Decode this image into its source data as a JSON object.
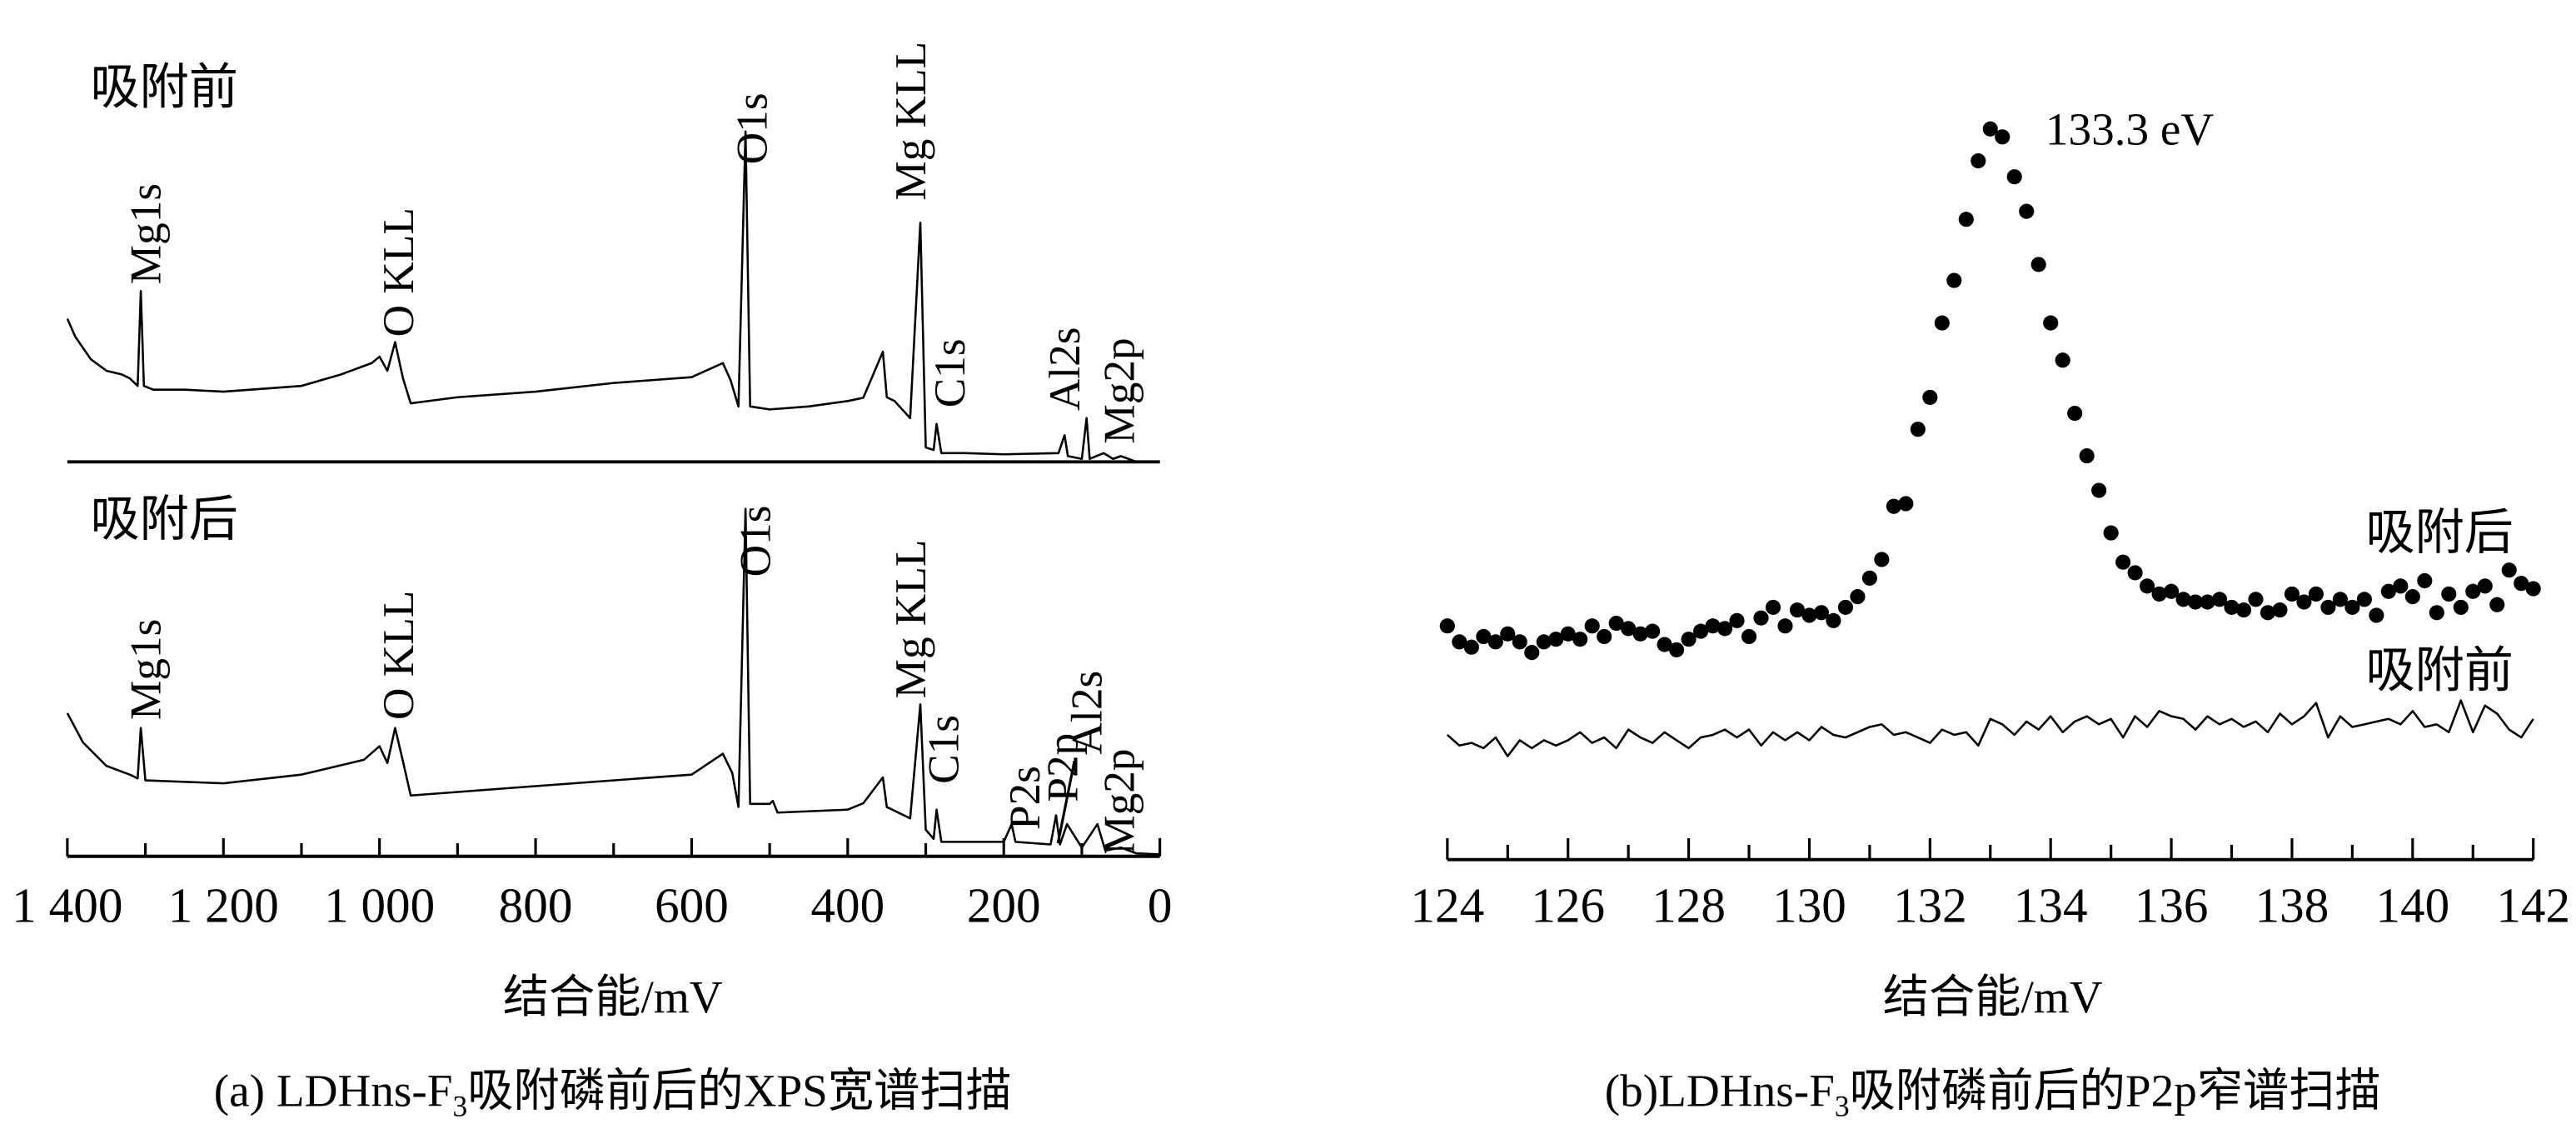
{
  "chart_data": [
    {
      "type": "line",
      "panel": "a",
      "caption_parts": [
        "(a) LDHns-F",
        "3",
        "吸附磷前后的XPS宽谱扫描"
      ],
      "xlabel": "结合能/mV",
      "ylabel": "",
      "xlim": [
        1400,
        0
      ],
      "x_reversed": true,
      "x_ticks": [
        1400,
        1200,
        1000,
        800,
        600,
        400,
        200,
        0
      ],
      "x_tick_labels": [
        "1 400",
        "1 200",
        "1 000",
        "800",
        "600",
        "400",
        "200",
        "0"
      ],
      "minor_tick_step": 100,
      "y_axis_shown": false,
      "panels": [
        {
          "label": "吸附前",
          "points": [
            [
              1400,
              37.7
            ],
            [
              1390,
              33
            ],
            [
              1370,
              27
            ],
            [
              1350,
              24
            ],
            [
              1330,
              23
            ],
            [
              1320,
              22
            ],
            [
              1310,
              20
            ],
            [
              1306,
              45
            ],
            [
              1302,
              20
            ],
            [
              1290,
              19
            ],
            [
              1250,
              19
            ],
            [
              1200,
              18.5
            ],
            [
              1100,
              20
            ],
            [
              1050,
              23
            ],
            [
              1010,
              26
            ],
            [
              1000,
              27.7
            ],
            [
              990,
              24
            ],
            [
              980,
              31.5
            ],
            [
              970,
              22
            ],
            [
              960,
              15.4
            ],
            [
              900,
              17
            ],
            [
              800,
              18.5
            ],
            [
              700,
              20.8
            ],
            [
              600,
              22.3
            ],
            [
              560,
              26
            ],
            [
              550,
              21.5
            ],
            [
              540,
              14.6
            ],
            [
              531,
              87
            ],
            [
              525,
              14.6
            ],
            [
              500,
              13.8
            ],
            [
              450,
              14.6
            ],
            [
              400,
              16
            ],
            [
              380,
              16.9
            ],
            [
              355,
              29
            ],
            [
              350,
              17
            ],
            [
              340,
              16
            ],
            [
              320,
              11.5
            ],
            [
              307,
              63
            ],
            [
              300,
              3.8
            ],
            [
              290,
              3.1
            ],
            [
              286,
              10
            ],
            [
              280,
              2.3
            ],
            [
              250,
              2.3
            ],
            [
              200,
              2
            ],
            [
              130,
              2.3
            ],
            [
              122,
              7
            ],
            [
              118,
              1.5
            ],
            [
              100,
              0.8
            ],
            [
              94,
              11.5
            ],
            [
              90,
              0.8
            ],
            [
              72,
              2.3
            ],
            [
              60,
              0.8
            ],
            [
              50,
              1.5
            ],
            [
              30,
              0
            ],
            [
              20,
              0
            ],
            [
              0,
              0
            ]
          ],
          "annotations": [
            {
              "text": "Mg1s",
              "x": 1306
            },
            {
              "text": "O KLL",
              "x": 980
            },
            {
              "text": "O1s",
              "x": 531
            },
            {
              "text": "Mg KLL",
              "x": 307
            },
            {
              "text": "C1s",
              "x": 286
            },
            {
              "text": "Al2s",
              "x": 122
            },
            {
              "text": "Mg2p",
              "x": 52
            }
          ]
        },
        {
          "label": "吸附后",
          "points": [
            [
              1400,
              37.7
            ],
            [
              1380,
              30
            ],
            [
              1350,
              23.8
            ],
            [
              1320,
              21.5
            ],
            [
              1310,
              20.5
            ],
            [
              1306,
              33.8
            ],
            [
              1300,
              20
            ],
            [
              1200,
              19.2
            ],
            [
              1100,
              21.5
            ],
            [
              1020,
              25.4
            ],
            [
              1000,
              29
            ],
            [
              990,
              24.6
            ],
            [
              980,
              33.8
            ],
            [
              970,
              25
            ],
            [
              960,
              16
            ],
            [
              800,
              18.5
            ],
            [
              600,
              21.5
            ],
            [
              560,
              27
            ],
            [
              548,
              22
            ],
            [
              540,
              13
            ],
            [
              531,
              91.5
            ],
            [
              525,
              13.8
            ],
            [
              500,
              13.8
            ],
            [
              496,
              14.6
            ],
            [
              490,
              11.5
            ],
            [
              400,
              12.3
            ],
            [
              380,
              14
            ],
            [
              355,
              20.8
            ],
            [
              350,
              13
            ],
            [
              320,
              10
            ],
            [
              307,
              40
            ],
            [
              300,
              7
            ],
            [
              290,
              4.6
            ],
            [
              286,
              12.3
            ],
            [
              280,
              3.8
            ],
            [
              200,
              3.8
            ],
            [
              190,
              8.5
            ],
            [
              185,
              3.8
            ],
            [
              140,
              3.1
            ],
            [
              133,
              10.8
            ],
            [
              128,
              3.1
            ],
            [
              119,
              8.5
            ],
            [
              100,
              2.3
            ],
            [
              90,
              5.4
            ],
            [
              80,
              8.5
            ],
            [
              70,
              1.5
            ],
            [
              50,
              2.3
            ],
            [
              30,
              0.8
            ],
            [
              0,
              0.5
            ]
          ],
          "annotations": [
            {
              "text": "Mg1s",
              "x": 1306
            },
            {
              "text": "O KLL",
              "x": 980
            },
            {
              "text": "O1s",
              "x": 531
            },
            {
              "text": "Mg KLL",
              "x": 307
            },
            {
              "text": "C1s",
              "x": 286
            },
            {
              "text": "P2s",
              "x": 190
            },
            {
              "text": "P2p",
              "x": 133
            },
            {
              "text": "Al2s",
              "x": 119
            },
            {
              "text": "Mg2p",
              "x": 52
            }
          ]
        }
      ]
    },
    {
      "type": "scatter",
      "panel": "b",
      "caption_parts": [
        "(b)LDHns-F",
        "3",
        "吸附磷前后的P2p窄谱扫描"
      ],
      "xlabel": "结合能/mV",
      "ylabel": "",
      "xlim": [
        124,
        142
      ],
      "x_ticks": [
        124,
        126,
        128,
        130,
        132,
        134,
        136,
        138,
        140,
        142
      ],
      "x_tick_labels": [
        "124",
        "126",
        "128",
        "130",
        "132",
        "134",
        "136",
        "138",
        "140",
        "142"
      ],
      "minor_tick_step": 1,
      "y_axis_shown": false,
      "peak_annotation": {
        "text": "133.3 eV",
        "x": 133.1
      },
      "x": [
        124,
        124.2,
        124.4,
        124.6,
        124.8,
        125,
        125.2,
        125.4,
        125.6,
        125.8,
        126,
        126.2,
        126.4,
        126.6,
        126.8,
        127,
        127.2,
        127.4,
        127.6,
        127.8,
        128,
        128.2,
        128.4,
        128.6,
        128.8,
        129,
        129.2,
        129.4,
        129.6,
        129.8,
        130,
        130.2,
        130.4,
        130.6,
        130.8,
        131,
        131.2,
        131.4,
        131.6,
        131.8,
        132,
        132.2,
        132.4,
        132.6,
        132.8,
        133,
        133.2,
        133.4,
        133.6,
        133.8,
        134,
        134.2,
        134.4,
        134.6,
        134.8,
        135,
        135.2,
        135.4,
        135.6,
        135.8,
        136,
        136.2,
        136.4,
        136.6,
        136.8,
        137,
        137.2,
        137.4,
        137.6,
        137.8,
        138,
        138.2,
        138.4,
        138.6,
        138.8,
        139,
        139.2,
        139.4,
        139.6,
        139.8,
        140,
        140.2,
        140.4,
        140.6,
        140.8,
        141,
        141.2,
        141.4,
        141.6,
        141.8,
        142
      ],
      "series": [
        {
          "name": "吸附后",
          "style": "dots",
          "values": [
            5,
            2,
            1,
            3,
            2,
            3.5,
            2,
            0,
            2,
            2.5,
            3.5,
            2.5,
            5,
            3,
            5.5,
            4.5,
            3.5,
            4,
            1.5,
            0.5,
            2.5,
            4,
            5,
            4.5,
            6,
            3,
            6.5,
            8.5,
            5,
            8,
            7,
            7.5,
            6,
            8.5,
            10.5,
            14,
            17.5,
            27.5,
            28,
            42,
            48,
            62,
            70,
            81.5,
            92.5,
            98.5,
            97,
            89.5,
            83,
            73,
            62,
            55,
            45,
            37,
            30.5,
            22.5,
            17,
            15,
            12.5,
            11,
            11.5,
            10,
            9.5,
            9.5,
            10,
            8.5,
            8,
            10,
            7.5,
            8,
            11,
            9.5,
            11,
            8.5,
            10,
            8.5,
            10,
            7,
            11.5,
            12.5,
            10.5,
            13.5,
            7.5,
            11,
            8.5,
            11.5,
            12.5,
            9,
            15.5,
            13,
            12
          ]
        },
        {
          "name": "吸附前",
          "style": "line",
          "values": [
            -15.5,
            -17.5,
            -17,
            -18,
            -16,
            -19.5,
            -16.5,
            -18,
            -16.5,
            -17.5,
            -16.5,
            -15,
            -17,
            -16,
            -18,
            -14.5,
            -16,
            -17,
            -15,
            -16.5,
            -18,
            -16,
            -15.5,
            -14.5,
            -16,
            -14.5,
            -17.5,
            -15,
            -16.5,
            -15,
            -16.5,
            -14,
            -15.5,
            -16,
            -15,
            -14,
            -13.5,
            -15.5,
            -15,
            -16,
            -17,
            -14.5,
            -15.5,
            -15,
            -17.5,
            -12.5,
            -13.5,
            -15.5,
            -13,
            -14.5,
            -12,
            -15,
            -13,
            -12,
            -13.5,
            -12.5,
            -16,
            -12,
            -14,
            -11,
            -12,
            -12.5,
            -14.5,
            -12,
            -13.5,
            -12.5,
            -14,
            -13,
            -15,
            -11.5,
            -13.5,
            -12,
            -9.5,
            -16,
            -12,
            -14,
            -13.5,
            -13,
            -12.5,
            -13.5,
            -11,
            -14,
            -13.5,
            -15,
            -9,
            -15,
            -10,
            -11.5,
            -14.5,
            -16,
            -12.5
          ]
        }
      ]
    }
  ]
}
